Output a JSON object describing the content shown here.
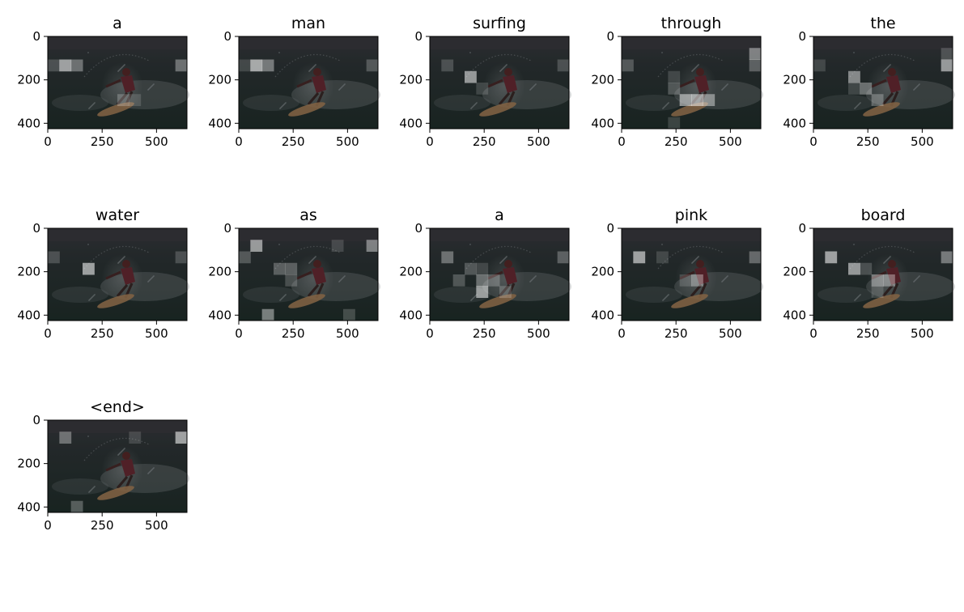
{
  "chart_data": {
    "type": "heatmap",
    "description_free": true,
    "x_ticks": [
      "0",
      "250",
      "500"
    ],
    "y_ticks": [
      "0",
      "200",
      "400"
    ],
    "x_tick_values": [
      0,
      250,
      500
    ],
    "y_tick_values": [
      0,
      200,
      400
    ],
    "xlim": [
      0,
      640
    ],
    "ylim": [
      425,
      0
    ],
    "grid_rows": 8,
    "grid_cols": 12,
    "panels": [
      {
        "word": "a",
        "hot": [
          [
            2,
            1,
            0.75
          ],
          [
            2,
            2,
            0.45
          ],
          [
            2,
            11,
            0.45
          ],
          [
            2,
            0,
            0.25
          ],
          [
            5,
            6,
            0.3
          ],
          [
            5,
            7,
            0.2
          ]
        ]
      },
      {
        "word": "man",
        "hot": [
          [
            2,
            1,
            0.8
          ],
          [
            2,
            2,
            0.5
          ],
          [
            2,
            11,
            0.3
          ],
          [
            2,
            0,
            0.2
          ]
        ]
      },
      {
        "word": "surfing",
        "hot": [
          [
            3,
            3,
            0.7
          ],
          [
            2,
            1,
            0.25
          ],
          [
            2,
            11,
            0.25
          ],
          [
            4,
            4,
            0.2
          ]
        ]
      },
      {
        "word": "through",
        "hot": [
          [
            1,
            11,
            0.55
          ],
          [
            2,
            11,
            0.35
          ],
          [
            5,
            5,
            0.65
          ],
          [
            5,
            6,
            0.7
          ],
          [
            5,
            7,
            0.55
          ],
          [
            4,
            4,
            0.3
          ],
          [
            2,
            0,
            0.3
          ],
          [
            3,
            4,
            0.2
          ],
          [
            7,
            4,
            0.2
          ]
        ]
      },
      {
        "word": "the",
        "hot": [
          [
            3,
            3,
            0.6
          ],
          [
            2,
            11,
            0.7
          ],
          [
            4,
            4,
            0.45
          ],
          [
            4,
            3,
            0.2
          ],
          [
            5,
            5,
            0.35
          ],
          [
            2,
            0,
            0.2
          ],
          [
            1,
            11,
            0.25
          ]
        ]
      },
      {
        "word": "water",
        "hot": [
          [
            3,
            3,
            0.75
          ],
          [
            2,
            0,
            0.25
          ],
          [
            2,
            11,
            0.25
          ]
        ]
      },
      {
        "word": "as",
        "hot": [
          [
            1,
            1,
            0.7
          ],
          [
            1,
            11,
            0.55
          ],
          [
            2,
            0,
            0.3
          ],
          [
            3,
            3,
            0.35
          ],
          [
            3,
            4,
            0.35
          ],
          [
            7,
            2,
            0.55
          ],
          [
            7,
            9,
            0.25
          ],
          [
            4,
            4,
            0.25
          ],
          [
            1,
            8,
            0.2
          ]
        ]
      },
      {
        "word": "a",
        "hot": [
          [
            2,
            1,
            0.45
          ],
          [
            2,
            11,
            0.35
          ],
          [
            3,
            3,
            0.3
          ],
          [
            4,
            2,
            0.3
          ],
          [
            4,
            4,
            0.45
          ],
          [
            5,
            4,
            0.7
          ],
          [
            4,
            5,
            0.3
          ],
          [
            5,
            6,
            0.25
          ],
          [
            3,
            4,
            0.2
          ]
        ]
      },
      {
        "word": "pink",
        "hot": [
          [
            2,
            1,
            0.75
          ],
          [
            2,
            11,
            0.4
          ],
          [
            4,
            6,
            0.45
          ],
          [
            2,
            3,
            0.2
          ],
          [
            4,
            5,
            0.2
          ]
        ]
      },
      {
        "word": "board",
        "hot": [
          [
            2,
            1,
            0.75
          ],
          [
            3,
            3,
            0.7
          ],
          [
            4,
            5,
            0.5
          ],
          [
            4,
            6,
            0.45
          ],
          [
            2,
            11,
            0.5
          ],
          [
            3,
            4,
            0.25
          ],
          [
            5,
            5,
            0.2
          ]
        ]
      },
      {
        "word": "<end>",
        "hot": [
          [
            1,
            1,
            0.45
          ],
          [
            1,
            11,
            0.75
          ],
          [
            7,
            2,
            0.35
          ],
          [
            1,
            7,
            0.2
          ]
        ]
      }
    ]
  }
}
